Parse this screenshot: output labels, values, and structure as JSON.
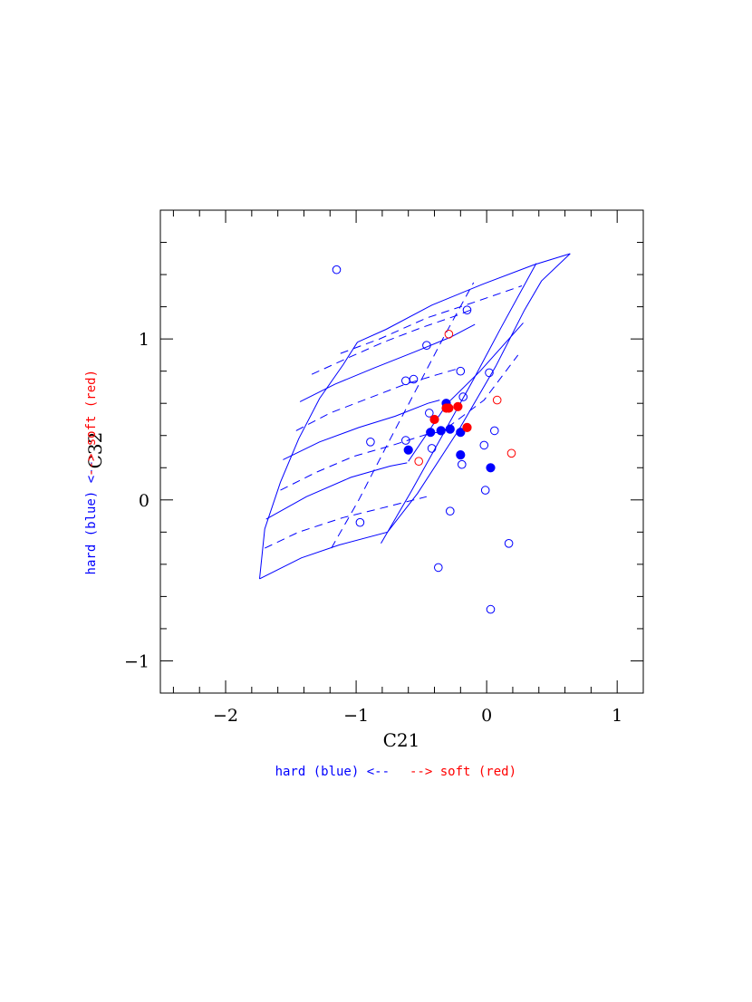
{
  "chart_data": {
    "type": "scatter",
    "xlabel": "C21",
    "ylabel": "C32",
    "xlim": [
      -2.5,
      1.2
    ],
    "ylim": [
      -1.2,
      1.8
    ],
    "x_ticks": [
      -2,
      -1,
      0,
      1
    ],
    "x_tick_labels": [
      "−2",
      "−1",
      "0",
      "1"
    ],
    "y_ticks": [
      -1,
      0,
      1
    ],
    "y_tick_labels": [
      "−1",
      "0",
      "1"
    ],
    "x_minor_step": 0.2,
    "y_minor_step": 0.2,
    "grid": false,
    "annotations": {
      "x_hard": "hard (blue) <--",
      "x_soft": "--> soft (red)",
      "y_hard": "hard (blue) <--",
      "y_soft": "--> soft (red)"
    },
    "colors": {
      "blue": "#0000ff",
      "red": "#ff0000"
    },
    "series": [
      {
        "color": "blue",
        "marker": "open-circle",
        "points": [
          [
            -1.15,
            1.43
          ],
          [
            -0.15,
            1.18
          ],
          [
            -0.46,
            0.96
          ],
          [
            -0.2,
            0.8
          ],
          [
            0.02,
            0.79
          ],
          [
            -0.62,
            0.74
          ],
          [
            -0.56,
            0.75
          ],
          [
            -0.18,
            0.64
          ],
          [
            -0.44,
            0.54
          ],
          [
            -0.62,
            0.37
          ],
          [
            -0.89,
            0.36
          ],
          [
            -0.42,
            0.32
          ],
          [
            0.06,
            0.43
          ],
          [
            -0.02,
            0.34
          ],
          [
            -0.19,
            0.22
          ],
          [
            -0.01,
            0.06
          ],
          [
            -0.28,
            -0.07
          ],
          [
            -0.97,
            -0.14
          ],
          [
            0.17,
            -0.27
          ],
          [
            -0.37,
            -0.42
          ],
          [
            0.03,
            -0.68
          ]
        ]
      },
      {
        "color": "red",
        "marker": "open-circle",
        "points": [
          [
            -0.29,
            1.03
          ],
          [
            0.08,
            0.62
          ],
          [
            0.19,
            0.29
          ],
          [
            -0.52,
            0.24
          ]
        ]
      },
      {
        "color": "blue",
        "marker": "filled-circle",
        "points": [
          [
            -0.31,
            0.6
          ],
          [
            -0.43,
            0.42
          ],
          [
            -0.35,
            0.43
          ],
          [
            -0.28,
            0.44
          ],
          [
            -0.2,
            0.42
          ],
          [
            -0.6,
            0.31
          ],
          [
            -0.2,
            0.28
          ],
          [
            0.03,
            0.2
          ]
        ]
      },
      {
        "color": "red",
        "marker": "filled-circle",
        "points": [
          [
            -0.31,
            0.57
          ],
          [
            -0.29,
            0.57
          ],
          [
            -0.22,
            0.58
          ],
          [
            -0.4,
            0.5
          ],
          [
            -0.15,
            0.45
          ]
        ]
      }
    ],
    "model_grid": {
      "color": "blue",
      "solid_lines": [
        [
          [
            -1.74,
            -0.49
          ],
          [
            -1.42,
            -0.36
          ],
          [
            -1.13,
            -0.28
          ],
          [
            -0.76,
            -0.2
          ],
          [
            -0.53,
            0.04
          ],
          [
            -0.21,
            0.44
          ],
          [
            0.07,
            0.83
          ],
          [
            0.29,
            1.18
          ],
          [
            0.42,
            1.36
          ],
          [
            0.64,
            1.53
          ]
        ],
        [
          [
            -1.74,
            -0.49
          ],
          [
            -1.7,
            -0.18
          ],
          [
            -1.58,
            0.11
          ],
          [
            -1.44,
            0.38
          ],
          [
            -1.28,
            0.63
          ],
          [
            -1.1,
            0.84
          ],
          [
            -0.99,
            0.98
          ]
        ],
        [
          [
            -0.99,
            0.98
          ],
          [
            -0.77,
            1.06
          ],
          [
            -0.42,
            1.21
          ],
          [
            -0.03,
            1.34
          ],
          [
            0.36,
            1.46
          ],
          [
            0.64,
            1.53
          ]
        ],
        [
          [
            -0.81,
            -0.27
          ],
          [
            -0.58,
            0.05
          ],
          [
            -0.34,
            0.4
          ],
          [
            -0.1,
            0.75
          ],
          [
            0.11,
            1.07
          ],
          [
            0.38,
            1.47
          ]
        ],
        [
          [
            -1.69,
            -0.12
          ],
          [
            -1.38,
            0.02
          ],
          [
            -1.04,
            0.14
          ],
          [
            -0.74,
            0.21
          ],
          [
            -0.61,
            0.23
          ]
        ],
        [
          [
            -1.56,
            0.25
          ],
          [
            -1.28,
            0.36
          ],
          [
            -0.98,
            0.45
          ],
          [
            -0.7,
            0.52
          ],
          [
            -0.45,
            0.6
          ],
          [
            -0.36,
            0.62
          ]
        ],
        [
          [
            -1.43,
            0.61
          ],
          [
            -1.16,
            0.72
          ],
          [
            -0.86,
            0.82
          ],
          [
            -0.55,
            0.92
          ],
          [
            -0.28,
            1.01
          ],
          [
            -0.09,
            1.09
          ]
        ],
        [
          [
            -0.6,
            0.24
          ],
          [
            -0.3,
            0.6
          ],
          [
            -0.05,
            0.8
          ],
          [
            0.28,
            1.1
          ]
        ]
      ],
      "dashed_lines": [
        [
          [
            -1.7,
            -0.3
          ],
          [
            -1.44,
            -0.2
          ],
          [
            -1.1,
            -0.11
          ],
          [
            -0.8,
            -0.05
          ],
          [
            -0.46,
            0.02
          ]
        ],
        [
          [
            -1.58,
            0.06
          ],
          [
            -1.31,
            0.17
          ],
          [
            -1.02,
            0.27
          ],
          [
            -0.72,
            0.34
          ],
          [
            -0.45,
            0.41
          ],
          [
            -0.3,
            0.43
          ]
        ],
        [
          [
            -1.46,
            0.43
          ],
          [
            -1.2,
            0.54
          ],
          [
            -0.91,
            0.63
          ],
          [
            -0.62,
            0.72
          ],
          [
            -0.37,
            0.78
          ],
          [
            -0.2,
            0.82
          ]
        ],
        [
          [
            -1.34,
            0.78
          ],
          [
            -1.07,
            0.88
          ],
          [
            -0.79,
            0.98
          ],
          [
            -0.5,
            1.07
          ],
          [
            -0.25,
            1.14
          ],
          [
            -0.09,
            1.19
          ]
        ],
        [
          [
            -1.12,
            0.91
          ],
          [
            -0.82,
            1.0
          ],
          [
            -0.46,
            1.13
          ],
          [
            -0.09,
            1.23
          ],
          [
            0.27,
            1.33
          ]
        ],
        [
          [
            -0.3,
            0.45
          ],
          [
            -0.02,
            0.62
          ],
          [
            0.24,
            0.9
          ]
        ],
        [
          [
            -1.19,
            -0.3
          ],
          [
            -0.98,
            0.0
          ],
          [
            -0.77,
            0.33
          ],
          [
            -0.55,
            0.67
          ],
          [
            -0.33,
            1.01
          ],
          [
            -0.1,
            1.35
          ]
        ]
      ]
    }
  }
}
